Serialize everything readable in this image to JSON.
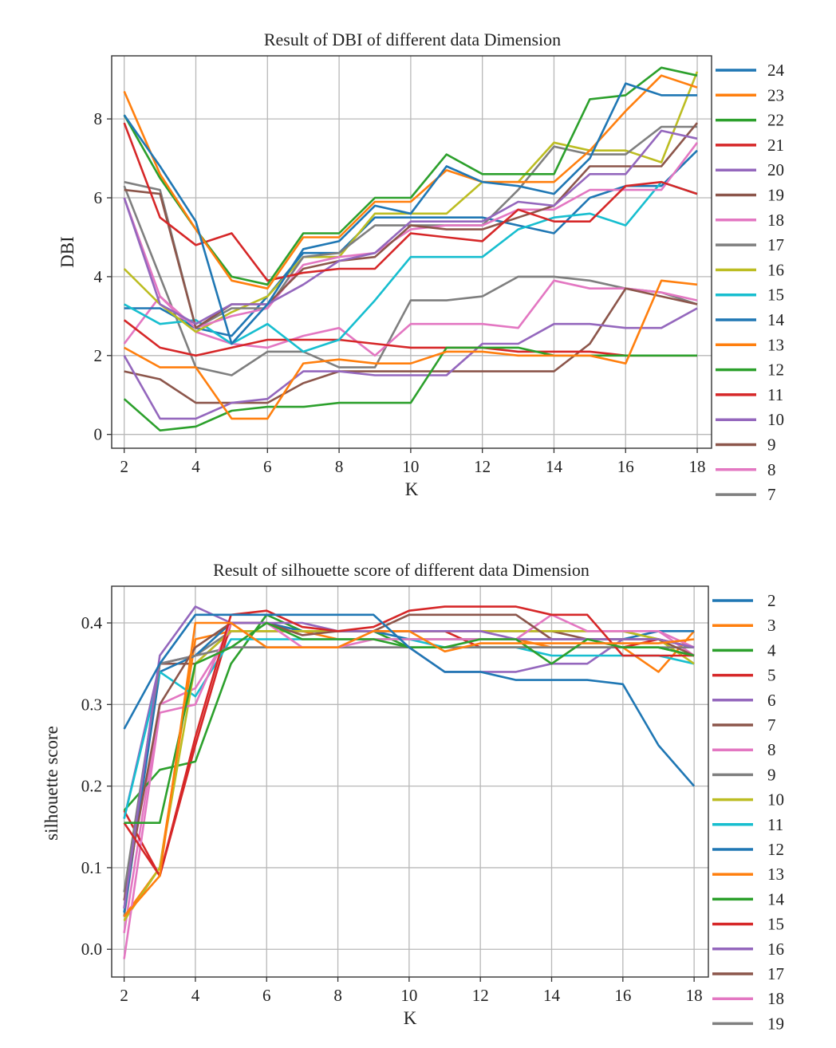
{
  "chart_data": [
    {
      "type": "line",
      "title": "Result of DBI of different data Dimension",
      "xlabel": "K",
      "ylabel": "DBI",
      "x": [
        2,
        3,
        4,
        5,
        6,
        7,
        8,
        9,
        10,
        11,
        12,
        13,
        14,
        15,
        16,
        17,
        18
      ],
      "xticks": [
        "2",
        "4",
        "6",
        "8",
        "10",
        "12",
        "14",
        "16",
        "18"
      ],
      "yticks": [
        "0",
        "2",
        "4",
        "6",
        "8"
      ],
      "xlim": [
        1.65,
        18.4
      ],
      "ylim": [
        -0.35,
        9.6
      ],
      "grid": true,
      "legend": "right",
      "series": [
        {
          "name": "24",
          "color": "#1f77b4",
          "values": [
            8.1,
            6.8,
            5.4,
            2.3,
            3.3,
            4.7,
            4.9,
            5.8,
            5.6,
            6.8,
            6.4,
            6.3,
            6.1,
            7.0,
            8.9,
            8.6,
            8.6
          ]
        },
        {
          "name": "23",
          "color": "#ff7f0e",
          "values": [
            8.7,
            6.6,
            5.2,
            3.9,
            3.7,
            5.0,
            5.0,
            5.9,
            5.9,
            6.7,
            6.4,
            6.4,
            6.4,
            7.2,
            8.2,
            9.1,
            8.8
          ]
        },
        {
          "name": "22",
          "color": "#2ca02c",
          "values": [
            8.1,
            6.5,
            5.2,
            4.0,
            3.8,
            5.1,
            5.1,
            6.0,
            6.0,
            7.1,
            6.6,
            6.6,
            6.6,
            8.5,
            8.6,
            9.3,
            9.1
          ]
        },
        {
          "name": "21",
          "color": "#d62728",
          "values": [
            7.9,
            5.5,
            4.8,
            5.1,
            3.9,
            4.1,
            4.2,
            4.2,
            5.1,
            5.0,
            4.9,
            5.7,
            5.4,
            5.4,
            6.3,
            6.4,
            6.1
          ]
        },
        {
          "name": "20",
          "color": "#9467bd",
          "values": [
            6.0,
            3.3,
            2.8,
            3.3,
            3.3,
            3.8,
            4.4,
            4.6,
            5.4,
            5.4,
            5.4,
            5.9,
            5.8,
            6.6,
            6.6,
            7.7,
            7.5
          ]
        },
        {
          "name": "19",
          "color": "#8c564b",
          "values": [
            6.2,
            6.1,
            2.7,
            3.3,
            3.3,
            4.2,
            4.4,
            4.5,
            5.3,
            5.2,
            5.2,
            5.5,
            5.8,
            6.8,
            6.8,
            6.8,
            7.9
          ]
        },
        {
          "name": "18",
          "color": "#e377c2",
          "values": [
            6.0,
            3.5,
            2.7,
            3.0,
            3.2,
            4.3,
            4.5,
            4.6,
            5.2,
            5.3,
            5.3,
            5.7,
            5.7,
            6.2,
            6.2,
            6.2,
            7.4
          ]
        },
        {
          "name": "17",
          "color": "#7f7f7f",
          "values": [
            6.4,
            6.2,
            2.7,
            3.2,
            3.2,
            4.5,
            4.6,
            5.3,
            5.3,
            5.3,
            5.3,
            6.2,
            7.3,
            7.1,
            7.1,
            7.8,
            7.8
          ]
        },
        {
          "name": "16",
          "color": "#bcbd22",
          "values": [
            4.2,
            3.3,
            2.6,
            3.1,
            3.5,
            4.5,
            4.5,
            5.6,
            5.6,
            5.6,
            6.4,
            6.4,
            7.4,
            7.2,
            7.2,
            6.9,
            9.2
          ]
        },
        {
          "name": "15",
          "color": "#17becf",
          "values": [
            3.3,
            2.8,
            2.9,
            2.3,
            2.8,
            2.1,
            2.4,
            3.4,
            4.5,
            4.5,
            4.5,
            5.2,
            5.5,
            5.6,
            5.3,
            6.4,
            6.1
          ]
        },
        {
          "name": "14",
          "color": "#1f77b4",
          "values": [
            3.2,
            3.2,
            2.7,
            2.5,
            3.5,
            4.6,
            4.6,
            5.5,
            5.5,
            5.5,
            5.5,
            5.3,
            5.1,
            6.0,
            6.3,
            6.3,
            7.2
          ]
        },
        {
          "name": "13",
          "color": "#ff7f0e",
          "values": [
            2.2,
            1.7,
            1.7,
            0.4,
            0.4,
            1.8,
            1.9,
            1.8,
            1.8,
            2.1,
            2.1,
            2.0,
            2.0,
            2.0,
            1.8,
            3.9,
            3.8
          ]
        },
        {
          "name": "12",
          "color": "#2ca02c",
          "values": [
            0.9,
            0.1,
            0.2,
            0.6,
            0.7,
            0.7,
            0.8,
            0.8,
            0.8,
            2.2,
            2.2,
            2.2,
            2.0,
            2.0,
            2.0,
            2.0,
            2.0
          ]
        },
        {
          "name": "11",
          "color": "#d62728",
          "values": [
            2.9,
            2.2,
            2.0,
            2.2,
            2.4,
            2.4,
            2.4,
            2.3,
            2.2,
            2.2,
            2.2,
            2.1,
            2.1,
            2.1,
            2.0,
            2.0,
            2.0
          ]
        },
        {
          "name": "10",
          "color": "#9467bd",
          "values": [
            2.0,
            0.4,
            0.4,
            0.8,
            0.9,
            1.6,
            1.6,
            1.5,
            1.5,
            1.5,
            2.3,
            2.3,
            2.8,
            2.8,
            2.7,
            2.7,
            3.2
          ]
        },
        {
          "name": "9",
          "color": "#8c564b",
          "values": [
            1.6,
            1.4,
            0.8,
            0.8,
            0.8,
            1.3,
            1.6,
            1.6,
            1.6,
            1.6,
            1.6,
            1.6,
            1.6,
            2.3,
            3.7,
            3.5,
            3.3
          ]
        },
        {
          "name": "8",
          "color": "#e377c2",
          "values": [
            2.3,
            3.5,
            2.6,
            2.3,
            2.2,
            2.5,
            2.7,
            2.0,
            2.8,
            2.8,
            2.8,
            2.7,
            3.9,
            3.7,
            3.7,
            3.6,
            3.4
          ]
        },
        {
          "name": "7",
          "color": "#7f7f7f",
          "values": [
            6.3,
            4.0,
            1.7,
            1.5,
            2.1,
            2.1,
            1.7,
            1.7,
            3.4,
            3.4,
            3.5,
            4.0,
            4.0,
            3.9,
            3.7,
            3.6,
            3.3
          ]
        }
      ]
    },
    {
      "type": "line",
      "title": "Result of silhouette score of different data Dimension",
      "xlabel": "K",
      "ylabel": "silhouette score",
      "x": [
        2,
        3,
        4,
        5,
        6,
        7,
        8,
        9,
        10,
        11,
        12,
        13,
        14,
        15,
        16,
        17,
        18
      ],
      "xticks": [
        "2",
        "4",
        "6",
        "8",
        "10",
        "12",
        "14",
        "16",
        "18"
      ],
      "yticks": [
        "0.0",
        "0.1",
        "0.2",
        "0.3",
        "0.4"
      ],
      "xlim": [
        1.65,
        18.4
      ],
      "ylim": [
        -0.034,
        0.445
      ],
      "grid": true,
      "legend": "right",
      "series": [
        {
          "name": "2",
          "color": "#1f77b4",
          "values": [
            0.27,
            0.35,
            0.41,
            0.41,
            0.41,
            0.41,
            0.41,
            0.41,
            0.37,
            0.34,
            0.34,
            0.33,
            0.33,
            0.33,
            0.325,
            0.25,
            0.2
          ]
        },
        {
          "name": "3",
          "color": "#ff7f0e",
          "values": [
            0.04,
            0.09,
            0.4,
            0.4,
            0.37,
            0.37,
            0.37,
            0.39,
            0.39,
            0.365,
            0.375,
            0.375,
            0.375,
            0.375,
            0.375,
            0.375,
            0.38
          ]
        },
        {
          "name": "4",
          "color": "#2ca02c",
          "values": [
            0.155,
            0.155,
            0.35,
            0.37,
            0.4,
            0.38,
            0.38,
            0.38,
            0.37,
            0.37,
            0.38,
            0.38,
            0.35,
            0.38,
            0.37,
            0.37,
            0.36
          ]
        },
        {
          "name": "5",
          "color": "#d62728",
          "values": [
            0.155,
            0.09,
            0.26,
            0.41,
            0.415,
            0.395,
            0.39,
            0.395,
            0.415,
            0.42,
            0.42,
            0.42,
            0.41,
            0.41,
            0.36,
            0.36,
            0.36
          ]
        },
        {
          "name": "6",
          "color": "#9467bd",
          "values": [
            0.05,
            0.36,
            0.42,
            0.4,
            0.4,
            0.4,
            0.39,
            0.39,
            0.39,
            0.39,
            0.39,
            0.38,
            0.38,
            0.38,
            0.38,
            0.38,
            0.37
          ]
        },
        {
          "name": "7",
          "color": "#8c564b",
          "values": [
            0.06,
            0.3,
            0.37,
            0.4,
            0.4,
            0.385,
            0.39,
            0.39,
            0.41,
            0.41,
            0.41,
            0.41,
            0.38,
            0.38,
            0.38,
            0.38,
            0.36
          ]
        },
        {
          "name": "8",
          "color": "#e377c2",
          "values": [
            -0.012,
            0.29,
            0.3,
            0.4,
            0.4,
            0.37,
            0.37,
            0.38,
            0.38,
            0.38,
            0.38,
            0.38,
            0.41,
            0.39,
            0.39,
            0.39,
            0.37
          ]
        },
        {
          "name": "9",
          "color": "#7f7f7f",
          "values": [
            0.07,
            0.35,
            0.36,
            0.37,
            0.37,
            0.37,
            0.37,
            0.37,
            0.37,
            0.37,
            0.37,
            0.37,
            0.37,
            0.37,
            0.37,
            0.37,
            0.37
          ]
        },
        {
          "name": "10",
          "color": "#bcbd22",
          "values": [
            0.035,
            0.1,
            0.35,
            0.39,
            0.39,
            0.39,
            0.39,
            0.39,
            0.39,
            0.39,
            0.39,
            0.39,
            0.39,
            0.39,
            0.39,
            0.38,
            0.35
          ]
        },
        {
          "name": "11",
          "color": "#17becf",
          "values": [
            0.16,
            0.34,
            0.31,
            0.38,
            0.38,
            0.38,
            0.38,
            0.38,
            0.38,
            0.37,
            0.37,
            0.37,
            0.36,
            0.36,
            0.36,
            0.36,
            0.35
          ]
        },
        {
          "name": "12",
          "color": "#1f77b4",
          "values": [
            0.045,
            0.34,
            0.36,
            0.4,
            0.4,
            0.39,
            0.39,
            0.39,
            0.38,
            0.38,
            0.38,
            0.38,
            0.38,
            0.38,
            0.38,
            0.39,
            0.39
          ]
        },
        {
          "name": "13",
          "color": "#ff7f0e",
          "values": [
            0.04,
            0.1,
            0.38,
            0.39,
            0.39,
            0.39,
            0.38,
            0.38,
            0.38,
            0.38,
            0.38,
            0.38,
            0.37,
            0.37,
            0.37,
            0.34,
            0.39
          ]
        },
        {
          "name": "14",
          "color": "#2ca02c",
          "values": [
            0.17,
            0.22,
            0.23,
            0.35,
            0.41,
            0.39,
            0.39,
            0.39,
            0.37,
            0.37,
            0.37,
            0.37,
            0.37,
            0.37,
            0.37,
            0.37,
            0.36
          ]
        },
        {
          "name": "15",
          "color": "#d62728",
          "values": [
            0.17,
            0.09,
            0.25,
            0.4,
            0.4,
            0.39,
            0.39,
            0.39,
            0.39,
            0.39,
            0.37,
            0.37,
            0.37,
            0.37,
            0.37,
            0.38,
            0.37
          ]
        },
        {
          "name": "16",
          "color": "#9467bd",
          "values": [
            0.16,
            0.35,
            0.36,
            0.37,
            0.37,
            0.37,
            0.37,
            0.37,
            0.37,
            0.34,
            0.34,
            0.34,
            0.35,
            0.35,
            0.38,
            0.38,
            0.37
          ]
        },
        {
          "name": "17",
          "color": "#8c564b",
          "values": [
            0.05,
            0.35,
            0.35,
            0.39,
            0.39,
            0.39,
            0.39,
            0.39,
            0.39,
            0.39,
            0.39,
            0.39,
            0.39,
            0.38,
            0.38,
            0.38,
            0.37
          ]
        },
        {
          "name": "18",
          "color": "#e377c2",
          "values": [
            0.02,
            0.3,
            0.32,
            0.39,
            0.39,
            0.39,
            0.39,
            0.39,
            0.39,
            0.39,
            0.39,
            0.39,
            0.39,
            0.39,
            0.39,
            0.39,
            0.36
          ]
        },
        {
          "name": "19",
          "color": "#7f7f7f",
          "values": [
            0.04,
            0.35,
            0.36,
            0.39,
            0.39,
            0.39,
            0.39,
            0.39,
            0.39,
            0.39,
            0.39,
            0.39,
            0.39,
            0.39,
            0.39,
            0.38,
            0.37
          ]
        }
      ]
    }
  ]
}
